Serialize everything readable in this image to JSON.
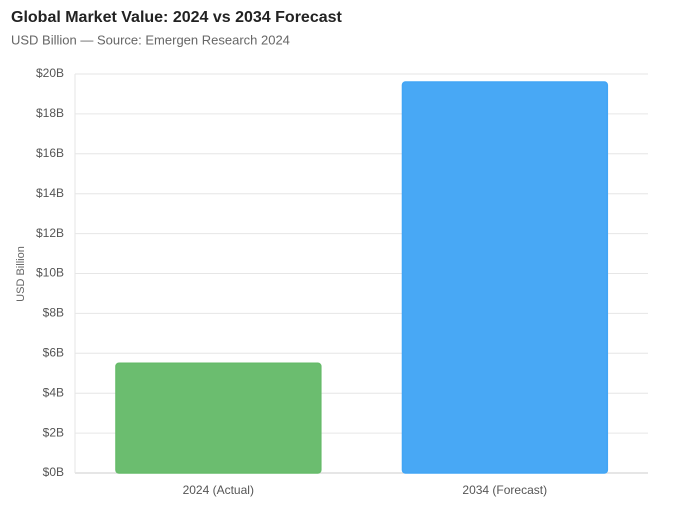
{
  "chart_data": {
    "type": "bar",
    "title": "Global Market Value: 2024 vs 2034 Forecast",
    "subtitle": "USD Billion — Source: Emergen Research 2024",
    "y_label": "USD Billion",
    "categories": [
      "2024 (Actual)",
      "2034 (Forecast)"
    ],
    "values": [
      5.5,
      19.6
    ],
    "colors": [
      "#66bb6a",
      "#42a5f5"
    ],
    "ylim": [
      0,
      20
    ],
    "yticks": [
      {
        "value": 0,
        "label": "$0B"
      },
      {
        "value": 2,
        "label": "$2B"
      },
      {
        "value": 4,
        "label": "$4B"
      },
      {
        "value": 6,
        "label": "$6B"
      },
      {
        "value": 8,
        "label": "$8B"
      },
      {
        "value": 10,
        "label": "$10B"
      },
      {
        "value": 12,
        "label": "$12B"
      },
      {
        "value": 14,
        "label": "$14B"
      },
      {
        "value": 16,
        "label": "$16B"
      },
      {
        "value": 18,
        "label": "$18B"
      },
      {
        "value": 20,
        "label": "$20B"
      }
    ],
    "grid": true
  }
}
